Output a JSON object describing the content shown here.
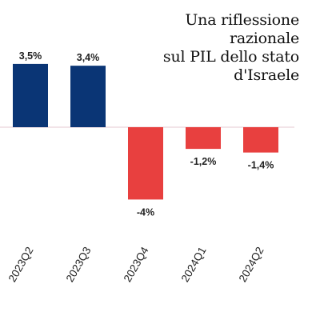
{
  "title_lines": [
    "Una riflessione",
    "razionale",
    "sul PIL dello stato",
    "d'Israele"
  ],
  "chart_data": {
    "type": "bar",
    "categories": [
      "2023Q2",
      "2023Q3",
      "2023Q4",
      "2024Q1",
      "2024Q2"
    ],
    "values": [
      3.5,
      3.4,
      -4,
      -1.2,
      -1.4
    ],
    "data_labels": [
      "3,5%",
      "3,4%",
      "-4%",
      "-1,2%",
      "-1,4%"
    ],
    "colors": {
      "positive": "#0a3575",
      "negative": "#e8403f",
      "zero_line": "#e6c8d2"
    },
    "title": "Una riflessione razionale sul PIL dello stato d'Israele",
    "xlabel": "",
    "ylabel": "",
    "ylim": [
      -4,
      3.5
    ],
    "grid": false,
    "legend": "none"
  }
}
